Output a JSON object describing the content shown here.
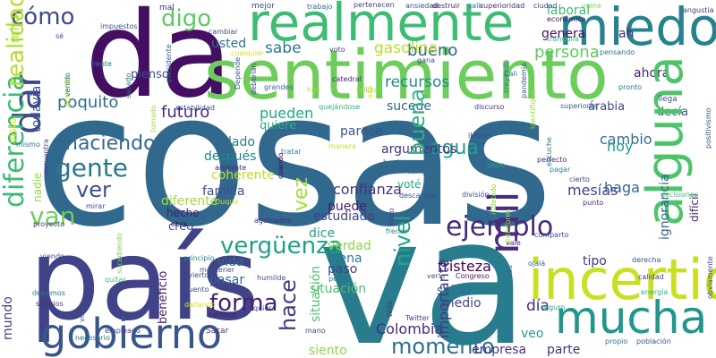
{
  "words": [
    {
      "text": "cosas",
      "color": "#31688e"
    },
    {
      "text": "va",
      "color": "#287c8e"
    },
    {
      "text": "país",
      "color": "#404387"
    },
    {
      "text": "da",
      "color": "#440f62"
    },
    {
      "text": "sentimiento",
      "color": "#6ccd5a"
    },
    {
      "text": "realmente",
      "color": "#3dbc74"
    },
    {
      "text": "miedo",
      "color": "#26828e"
    },
    {
      "text": "gobierno",
      "color": "#4ec36b"
    },
    {
      "text": "incertidumbre",
      "color": "#39568c"
    },
    {
      "text": "mucha",
      "color": "#472d7b"
    },
    {
      "text": "cómo",
      "color": "#c8e020"
    },
    {
      "text": "digo",
      "color": "#1f978b"
    },
    {
      "text": "van",
      "color": "#3e4a89"
    },
    {
      "text": "gente",
      "color": "#3bbb75"
    },
    {
      "text": "ejemplo",
      "color": "#3e4989"
    },
    {
      "text": "haciendo",
      "color": "#5ec962"
    },
    {
      "text": "ver",
      "color": "#b5de2b"
    },
    {
      "text": "vergüenza",
      "color": "#6ece58"
    },
    {
      "text": "agua",
      "color": "#2a788e"
    },
    {
      "text": "momento",
      "color": "#482878"
    },
    {
      "text": "forma",
      "color": "#31688e"
    },
    {
      "text": "poquito",
      "color": "#3b528b"
    },
    {
      "text": "bueno",
      "color": "#1fa187"
    },
    {
      "text": "persona",
      "color": "#21a685"
    },
    {
      "text": "sabe",
      "color": "#2db27d"
    },
    {
      "text": "gasolina",
      "color": "#1f9e89"
    },
    {
      "text": "recursos",
      "color": "#2c728e"
    },
    {
      "text": "día",
      "color": "#481f70"
    },
    {
      "text": "siento",
      "color": "#453882"
    },
    {
      "text": "tristeza",
      "color": "#2e6e8e"
    },
    {
      "text": "Colombia",
      "color": "#34608d"
    },
    {
      "text": "confianza",
      "color": "#5ec962"
    },
    {
      "text": "cambio",
      "color": "#2a788e"
    },
    {
      "text": "hoy",
      "color": "#b8de29"
    },
    {
      "text": "haga",
      "color": "#228d8d"
    },
    {
      "text": "mesías",
      "color": "#472c7a"
    },
    {
      "text": "situación",
      "color": "#8bd646"
    },
    {
      "text": "salud",
      "color": "#440154"
    },
    {
      "text": "usted",
      "color": "#472a7a"
    },
    {
      "text": "pienso",
      "color": "#46327e"
    },
    {
      "text": "futuro",
      "color": "#2e6f8e"
    },
    {
      "text": "pueden",
      "color": "#1e9b8a"
    },
    {
      "text": "quiere",
      "color": "#31678e"
    },
    {
      "text": "parece",
      "color": "#3f4788"
    },
    {
      "text": "argumentos",
      "color": "#433e85"
    },
    {
      "text": "sucede",
      "color": "#3b518b"
    },
    {
      "text": "árabia",
      "color": "#a8db34"
    },
    {
      "text": "decía",
      "color": "#470e61"
    },
    {
      "text": "lado",
      "color": "#3aba76"
    },
    {
      "text": "después",
      "color": "#482878"
    },
    {
      "text": "coherente",
      "color": "#482173"
    },
    {
      "text": "familia",
      "color": "#443983"
    },
    {
      "text": "diferente",
      "color": "#453781"
    },
    {
      "text": "hecho",
      "color": "#3f4889"
    },
    {
      "text": "creo",
      "color": "#46327e"
    },
    {
      "text": "estudiado",
      "color": "#46327e"
    },
    {
      "text": "puede",
      "color": "#20a486"
    },
    {
      "text": "dice",
      "color": "#355f8d"
    },
    {
      "text": "voté",
      "color": "#2f6b8e"
    },
    {
      "text": "verdad",
      "color": "#89d548"
    },
    {
      "text": "ajena",
      "color": "#297a8e"
    },
    {
      "text": "paso",
      "color": "#424186"
    },
    {
      "text": "vida",
      "color": "#c0df25"
    },
    {
      "text": "pasar",
      "color": "#25848e"
    },
    {
      "text": "medio",
      "color": "#3e4c8a"
    },
    {
      "text": "empresa",
      "color": "#a2da37"
    },
    {
      "text": "parte",
      "color": "#481a6c"
    },
    {
      "text": "veo",
      "color": "#3b518b"
    },
    {
      "text": "tipo",
      "color": "#297b8e"
    },
    {
      "text": "ah",
      "color": "#472a7a"
    },
    {
      "text": "ahora",
      "color": "#3b528b"
    },
    {
      "text": "genera",
      "color": "#2c728e"
    },
    {
      "text": "laboral",
      "color": "#22a785"
    },
    {
      "text": "alguna",
      "color": "#2db27d"
    },
    {
      "text": "mil",
      "color": "#3a548c"
    },
    {
      "text": "dar",
      "color": "#472f7d"
    },
    {
      "text": "diferencia",
      "color": "#32658e"
    },
    {
      "text": "realidad",
      "color": "#404588"
    },
    {
      "text": "nivel",
      "color": "#3a548c"
    },
    {
      "text": "buena",
      "color": "#1fa088"
    },
    {
      "text": "hace",
      "color": "#481b6d"
    },
    {
      "text": "vez",
      "color": "#424086"
    },
    {
      "text": "mundo",
      "color": "#25ac82"
    },
    {
      "text": "todavía",
      "color": "#4ac16d"
    },
    {
      "text": "mira",
      "color": "#2d708e"
    },
    {
      "text": "visto",
      "color": "#a5db36"
    },
    {
      "text": "nadie",
      "color": "#472d7b"
    },
    {
      "text": "importante",
      "color": "#3f4889"
    },
    {
      "text": "beneficio",
      "color": "#dde318"
    },
    {
      "text": "difícil",
      "color": "#94d741"
    },
    {
      "text": "ignorancia",
      "color": "#482071"
    },
    {
      "text": "impuestos",
      "color": "#481f70"
    },
    {
      "text": "sé",
      "color": "#31678e"
    },
    {
      "text": "mal",
      "color": "#39558c"
    },
    {
      "text": "mejor",
      "color": "#3c508b"
    },
    {
      "text": "pertenecen",
      "color": "#404588"
    },
    {
      "text": "trabajo",
      "color": "#2e6e8e"
    },
    {
      "text": "ansiedad",
      "color": "#3e4a89"
    },
    {
      "text": "destruir",
      "color": "#482475"
    },
    {
      "text": "salir",
      "color": "#2a788e"
    },
    {
      "text": "superioridad",
      "color": "#472a7a"
    },
    {
      "text": "ciudad",
      "color": "#443a83"
    },
    {
      "text": "viene",
      "color": "#7fd34e"
    },
    {
      "text": "angustia",
      "color": "#463480"
    },
    {
      "text": "económica",
      "color": "#471164"
    },
    {
      "text": "tranquila",
      "color": "#38b977"
    },
    {
      "text": "pensando",
      "color": "#2c738e"
    },
    {
      "text": "Cali",
      "color": "#2c738e"
    },
    {
      "text": "pronto",
      "color": "#2a768e"
    },
    {
      "text": "llega",
      "color": "#3c4f8a"
    },
    {
      "text": "superiores",
      "color": "#355f8d"
    },
    {
      "text": "estabilidad",
      "color": "#3d4d8a"
    },
    {
      "text": "discurso",
      "color": "#46337f"
    },
    {
      "text": "quejándose",
      "color": "#2db27d"
    },
    {
      "text": "grandes",
      "color": "#32658e"
    },
    {
      "text": "hijo",
      "color": "#b0dd2f"
    },
    {
      "text": "utilizar",
      "color": "#9dd93b"
    },
    {
      "text": "catedral",
      "color": "#482677"
    },
    {
      "text": "voto",
      "color": "#414487"
    },
    {
      "text": "cualquier",
      "color": "#d2e21b"
    },
    {
      "text": "cambiar",
      "color": "#3f4889"
    },
    {
      "text": "llegar",
      "color": "#3e4989"
    },
    {
      "text": "tratar",
      "color": "#26828e"
    },
    {
      "text": "adelante",
      "color": "#482979"
    },
    {
      "text": "manera",
      "color": "#c2df23"
    },
    {
      "text": "bordo",
      "color": "#2e6f8e"
    },
    {
      "text": "debe",
      "color": "#22a884"
    },
    {
      "text": "campaña",
      "color": "#2c738e"
    },
    {
      "text": "perfecto",
      "color": "#472c7a"
    },
    {
      "text": "pagar",
      "color": "#24878e"
    },
    {
      "text": "cierto",
      "color": "#3f4788"
    },
    {
      "text": "punto",
      "color": "#472f7d"
    },
    {
      "text": "decisiones",
      "color": "#3dbc74"
    },
    {
      "text": "división",
      "color": "#3a548c"
    },
    {
      "text": "descarado",
      "color": "#3e4a89"
    },
    {
      "text": "Duque",
      "color": "#d8e219"
    },
    {
      "text": "obra",
      "color": "#440154"
    },
    {
      "text": "agobiados",
      "color": "#46307e"
    },
    {
      "text": "frenar",
      "color": "#26828e"
    },
    {
      "text": "vale",
      "color": "#482878"
    },
    {
      "text": "comparto",
      "color": "#3e4a89"
    },
    {
      "text": "derecha",
      "color": "#3b528b"
    },
    {
      "text": "ojalá",
      "color": "#31688e"
    },
    {
      "text": "calidad",
      "color": "#433e85"
    },
    {
      "text": "energía",
      "color": "#2db27d"
    },
    {
      "text": "seguro",
      "color": "#3e4c8a"
    },
    {
      "text": "población",
      "color": "#39558c"
    },
    {
      "text": "propio",
      "color": "#1f9e89"
    },
    {
      "text": "Twitter",
      "color": "#39558c"
    },
    {
      "text": "pena",
      "color": "#2c728e"
    },
    {
      "text": "verlo",
      "color": "#3f4889"
    },
    {
      "text": "Congreso",
      "color": "#433d84"
    },
    {
      "text": "mano",
      "color": "#2a788e"
    },
    {
      "text": "quiera",
      "color": "#3a548c"
    },
    {
      "text": "Sacar",
      "color": "#481b6d"
    },
    {
      "text": "humilde",
      "color": "#3c4f8a"
    },
    {
      "text": "permite",
      "color": "#3e4c8a"
    },
    {
      "text": "dañando",
      "color": "#46327e"
    },
    {
      "text": "empleado",
      "color": "#3b528b"
    },
    {
      "text": "debemos",
      "color": "#481a6c"
    },
    {
      "text": "quitar",
      "color": "#3d4d8a"
    },
    {
      "text": "mantener",
      "color": "#dde318"
    },
    {
      "text": "principio",
      "color": "#3e4a89"
    },
    {
      "text": "viendo",
      "color": "#2a788e"
    },
    {
      "text": "proyecto",
      "color": "#3b528b"
    },
    {
      "text": "mirar",
      "color": "#46327e"
    },
    {
      "text": "mismo",
      "color": "#2c738e"
    },
    {
      "text": "frente",
      "color": "#44bf70"
    },
    {
      "text": "gana",
      "color": "#3e4989"
    },
    {
      "text": "invierto",
      "color": "#3b528b"
    },
    {
      "text": "cuento",
      "color": "#25858e"
    },
    {
      "text": "salarios",
      "color": "#7ad151"
    },
    {
      "text": "necesario",
      "color": "#3d4d8a"
    },
    {
      "text": "acuerdo",
      "color": "#46307e"
    },
    {
      "text": "venido",
      "color": "#3e4a89"
    },
    {
      "text": "presidente",
      "color": "#3e4989"
    },
    {
      "text": "sacado",
      "color": "#2c728e"
    },
    {
      "text": "tomado",
      "color": "#2c738e"
    },
    {
      "text": "deberían",
      "color": "#bddf26"
    },
    {
      "text": "Depende",
      "color": "#2a778e"
    },
    {
      "text": "allá",
      "color": "#2e6e8e"
    },
    {
      "text": "pandemia",
      "color": "#2c728e"
    },
    {
      "text": "creyendo",
      "color": "#9fda3a"
    },
    {
      "text": "identifique",
      "color": "#3e4a89"
    },
    {
      "text": "escuche",
      "color": "#3a548c"
    },
    {
      "text": "anteriores",
      "color": "#d8e219"
    },
    {
      "text": "justo",
      "color": "#3e4989"
    },
    {
      "text": "indebido",
      "color": "#3b528b"
    },
    {
      "text": "esa",
      "color": "#2a788e"
    },
    {
      "text": "todo",
      "color": "#9bd93c"
    },
    {
      "text": "obviamente",
      "color": "#2a778e"
    },
    {
      "text": "positivismo",
      "color": "#a0da39"
    },
    {
      "text": "encuentra",
      "color": "#433e85"
    },
    {
      "text": "vista",
      "color": "#8fd744"
    },
    {
      "text": "sucediendo",
      "color": "#2e6e8e"
    },
    {
      "text": "cuando",
      "color": "#440154"
    }
  ]
}
